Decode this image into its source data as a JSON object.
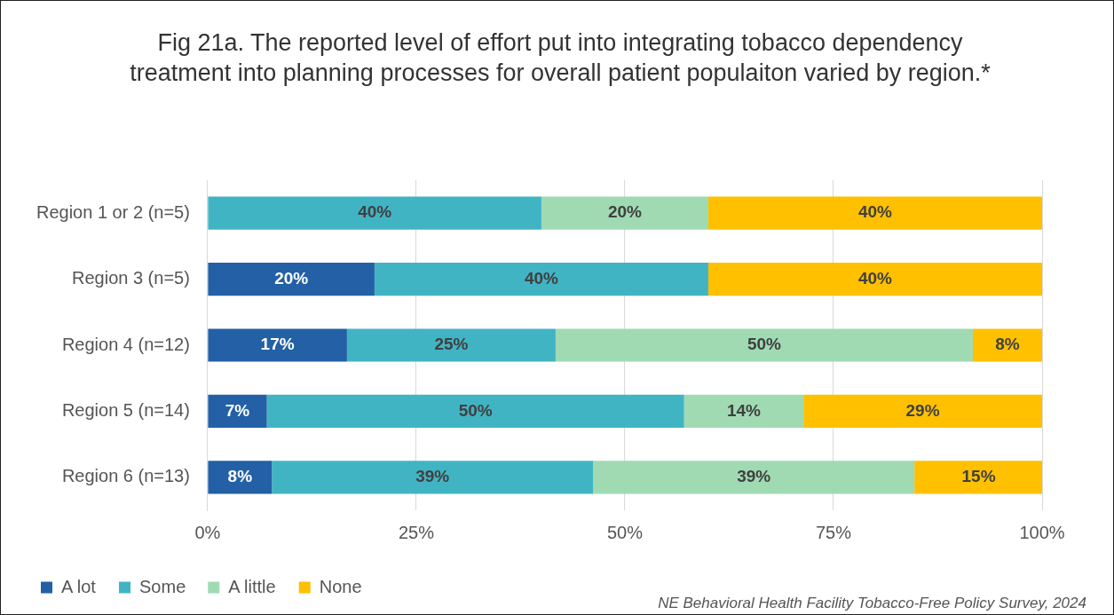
{
  "chart_data": {
    "type": "bar",
    "orientation": "horizontal",
    "stacked": true,
    "title": "Fig 21a. The reported level of effort put into integrating tobacco dependency treatment into planning processes for overall patient populaiton varied by region.*",
    "categories": [
      "Region 1 or 2 (n=5)",
      "Region 3 (n=5)",
      "Region 4 (n=12)",
      "Region 5 (n=14)",
      "Region 6 (n=13)"
    ],
    "series": [
      {
        "name": "A lot",
        "color": "#2360a5",
        "values": [
          0,
          20,
          16.7,
          7.1,
          7.7
        ],
        "value_labels": [
          null,
          "20%",
          "17%",
          "7%",
          "8%"
        ]
      },
      {
        "name": "Some",
        "color": "#41b4c4",
        "values": [
          40,
          40,
          25,
          50,
          38.5
        ],
        "value_labels": [
          "40%",
          "40%",
          "25%",
          "50%",
          "39%"
        ]
      },
      {
        "name": "A little",
        "color": "#a0dab3",
        "values": [
          20,
          0,
          50,
          14.3,
          38.5
        ],
        "value_labels": [
          "20%",
          null,
          "50%",
          "14%",
          "39%"
        ]
      },
      {
        "name": "None",
        "color": "#ffc000",
        "values": [
          40,
          40,
          8.3,
          28.6,
          15.4
        ],
        "value_labels": [
          "40%",
          "40%",
          "8%",
          "29%",
          "15%"
        ]
      }
    ],
    "xlim": [
      0,
      100
    ],
    "xticks": [
      {
        "value": 0,
        "label": "0%"
      },
      {
        "value": 25,
        "label": "25%"
      },
      {
        "value": 50,
        "label": "50%"
      },
      {
        "value": 75,
        "label": "75%"
      },
      {
        "value": 100,
        "label": "100%"
      }
    ],
    "grid": "x",
    "legend": "bottom left",
    "annotations": [
      "NE Behavioral Health Facility Tobacco-Free Policy Survey, 2024"
    ]
  }
}
